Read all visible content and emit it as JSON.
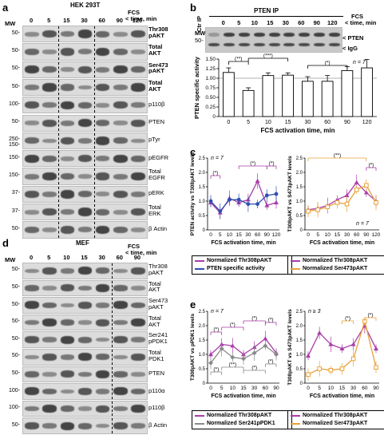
{
  "panel_a": {
    "letter": "a",
    "cell_line": "HEK 293T",
    "mw_label": "MW",
    "fcs_label": "FCS",
    "time_label": "< time, min",
    "lanes": [
      "0",
      "5",
      "15",
      "30",
      "60",
      "90",
      "120"
    ],
    "rows": [
      {
        "label": "Thr308",
        "label2": "pAKT",
        "bold": true,
        "mw": "50-"
      },
      {
        "label": "Total",
        "label2": "AKT",
        "bold": true,
        "mw": "50-"
      },
      {
        "label": "Ser473",
        "label2": "pAKT",
        "bold": true,
        "mw": "50-"
      },
      {
        "label": "Total",
        "label2": "AKT",
        "bold": true,
        "mw": "50-"
      },
      {
        "label": "p110β",
        "label2": "",
        "bold": false,
        "mw": "100-"
      },
      {
        "label": "PTEN",
        "label2": "",
        "bold": false,
        "mw": "50-"
      },
      {
        "label": "pTyr",
        "label2": "",
        "bold": false,
        "mw": "250- 150-"
      },
      {
        "label": "pEGFR",
        "label2": "",
        "bold": false,
        "mw": "150-"
      },
      {
        "label": "Total",
        "label2": "EGFR",
        "bold": false,
        "mw": "150-"
      },
      {
        "label": "pERK",
        "label2": "",
        "bold": false,
        "mw": "37-"
      },
      {
        "label": "Total",
        "label2": "ERK",
        "bold": false,
        "mw": "37-"
      },
      {
        "label": "β Actin",
        "label2": "",
        "bold": false,
        "mw": "50-"
      }
    ]
  },
  "panel_b": {
    "letter": "b",
    "ctr_ip": "Ctr IP",
    "pten_ip": "PTEN IP",
    "fcs_label": "FCS",
    "time_label": "< time, min",
    "lanes": [
      "0",
      "5",
      "10",
      "15",
      "30",
      "60",
      "90",
      "120"
    ],
    "mw_label": "MW",
    "mw_50": "50-",
    "pten_arrow": "< PTEN",
    "igg_arrow": "< IgG",
    "n_label": "n = 7"
  },
  "panel_c": {
    "letter": "c",
    "n_left": "n = 7",
    "n_right": "n = 7",
    "legend_left": [
      {
        "label": "Normalized Thr308pAKT",
        "color": "#a83da8"
      },
      {
        "label": "PTEN specific activity",
        "color": "#2f4fb0"
      }
    ],
    "legend_right": [
      {
        "label": "Normalized Thr308pAKT",
        "color": "#a83da8"
      },
      {
        "label": "Normalized Ser473pAKT",
        "color": "#e8a13a"
      }
    ]
  },
  "panel_d": {
    "letter": "d",
    "cell_line": "MEF",
    "mw_label": "MW",
    "fcs_label": "FCS",
    "time_label": "< time, min",
    "lanes": [
      "0",
      "5",
      "10",
      "15",
      "30",
      "60",
      "90"
    ],
    "rows": [
      {
        "label": "Thr308",
        "label2": "pAKT",
        "mw": "50-"
      },
      {
        "label": "Total",
        "label2": "AKT",
        "mw": "50-"
      },
      {
        "label": "Ser473",
        "label2": "pAKT",
        "mw": "50-"
      },
      {
        "label": "Total",
        "label2": "AKT",
        "mw": "50-"
      },
      {
        "label": "Ser241",
        "label2": "pPDK1",
        "mw": "50-"
      },
      {
        "label": "Total",
        "label2": "PDK1",
        "mw": "50-"
      },
      {
        "label": "PTEN",
        "label2": "",
        "mw": "50-"
      },
      {
        "label": "p110α",
        "label2": "",
        "mw": "100-"
      },
      {
        "label": "p110β",
        "label2": "",
        "mw": "100-"
      },
      {
        "label": "β Actin",
        "label2": "",
        "mw": "50-"
      }
    ]
  },
  "panel_e": {
    "letter": "e",
    "n_left": "n = 7",
    "n_right": "n ≥ 3",
    "legend_left": [
      {
        "label": "Normalized Thr308pAKT",
        "color": "#a83da8"
      },
      {
        "label": "Normalized Ser241pPDK1",
        "color": "#8a8a8a"
      }
    ],
    "legend_right": [
      {
        "label": "Normalized Thr308pAKT",
        "color": "#a83da8"
      },
      {
        "label": "Normalized Ser473pAKT",
        "color": "#e8a13a"
      }
    ]
  },
  "chart_data": [
    {
      "id": "b-bar",
      "type": "bar",
      "title": "",
      "xlabel": "FCS activation time, min",
      "ylabel": "PTEN specific activity",
      "categories": [
        "0",
        "5",
        "10",
        "15",
        "30",
        "60",
        "90",
        "120"
      ],
      "values": [
        1.15,
        0.68,
        1.07,
        1.08,
        0.92,
        0.92,
        1.2,
        1.27
      ],
      "errors": [
        0.12,
        0.07,
        0.07,
        0.06,
        0.12,
        0.15,
        0.1,
        0.22
      ],
      "ylim": [
        0,
        1.5
      ],
      "yticks": [
        "0",
        "0.25",
        "0.50",
        "0.75",
        "1.00",
        "1.25",
        "1.50"
      ],
      "reference_line": 1.0,
      "annotations": [
        "(**)",
        "(***)",
        "(*)"
      ]
    },
    {
      "id": "c-left",
      "type": "line",
      "xlabel": "FCS activation time, min",
      "ylabel": "PTEN activity vs T308pAKT levels",
      "categories": [
        "0",
        "5",
        "10",
        "15",
        "30",
        "60",
        "90",
        "120"
      ],
      "ylim": [
        0,
        2.5
      ],
      "yticks": [
        "0",
        "0.5",
        "1.0",
        "1.5",
        "2.0",
        "2.5"
      ],
      "series": [
        {
          "name": "Normalized Thr308pAKT",
          "values": [
            0.95,
            0.6,
            1.1,
            0.95,
            1.05,
            1.7,
            0.85,
            0.95
          ]
        },
        {
          "name": "PTEN specific activity",
          "values": [
            1.0,
            0.65,
            1.05,
            1.05,
            0.9,
            0.9,
            1.2,
            1.25
          ]
        }
      ],
      "annotations": [
        "(*)",
        "(*)",
        "(*)"
      ]
    },
    {
      "id": "c-right",
      "type": "line",
      "xlabel": "FCS activation time, min",
      "ylabel": "T308pAKT vs S473pAKT levels",
      "categories": [
        "0",
        "5",
        "10",
        "15",
        "30",
        "60",
        "90",
        "120"
      ],
      "ylim": [
        0,
        2.5
      ],
      "yticks": [
        "0",
        "0.5",
        "1.0",
        "1.5",
        "2.0",
        "2.5"
      ],
      "series": [
        {
          "name": "Normalized Thr308pAKT",
          "values": [
            0.7,
            0.75,
            0.85,
            1.05,
            1.2,
            1.65,
            1.3,
            1.0
          ]
        },
        {
          "name": "Normalized Ser473pAKT",
          "values": [
            0.65,
            0.7,
            0.8,
            0.95,
            0.9,
            1.4,
            1.55,
            0.95
          ]
        }
      ],
      "annotations": [
        "(**)",
        "(*)"
      ]
    },
    {
      "id": "e-left",
      "type": "line",
      "xlabel": "FCS activation time, min",
      "ylabel": "T308pAKT vs pPDK1 levels",
      "categories": [
        "0",
        "5",
        "10",
        "15",
        "30",
        "60",
        "90"
      ],
      "ylim": [
        0,
        2.5
      ],
      "yticks": [
        "0",
        "0.5",
        "1.0",
        "1.5",
        "2.0",
        "2.5"
      ],
      "series": [
        {
          "name": "Normalized Thr308pAKT",
          "values": [
            1.0,
            1.35,
            1.3,
            1.0,
            1.25,
            1.55,
            1.05
          ]
        },
        {
          "name": "Normalized Ser241pPDK1",
          "values": [
            0.7,
            1.2,
            0.9,
            0.85,
            1.05,
            1.3,
            1.0
          ]
        }
      ],
      "annotations": [
        "(*)",
        "(*)",
        "(*)",
        "(*)",
        "(*)",
        "(**)",
        "(*)",
        "(*)"
      ]
    },
    {
      "id": "e-right",
      "type": "line",
      "xlabel": "FCS activation time, min",
      "ylabel": "T308pAKT vs S473pAKT levels",
      "categories": [
        "0",
        "5",
        "10",
        "15",
        "30",
        "60",
        "90"
      ],
      "ylim": [
        0,
        2.5
      ],
      "yticks": [
        "0",
        "0.5",
        "1.0",
        "1.5",
        "2.0",
        "2.5"
      ],
      "series": [
        {
          "name": "Normalized Thr308pAKT",
          "values": [
            0.95,
            1.75,
            1.35,
            1.2,
            1.35,
            2.0,
            1.2
          ]
        },
        {
          "name": "Normalized Ser473pAKT",
          "values": [
            0.3,
            0.5,
            0.45,
            0.5,
            0.85,
            2.15,
            0.55
          ]
        }
      ],
      "annotations": [
        "(*)",
        "(*)"
      ]
    }
  ]
}
